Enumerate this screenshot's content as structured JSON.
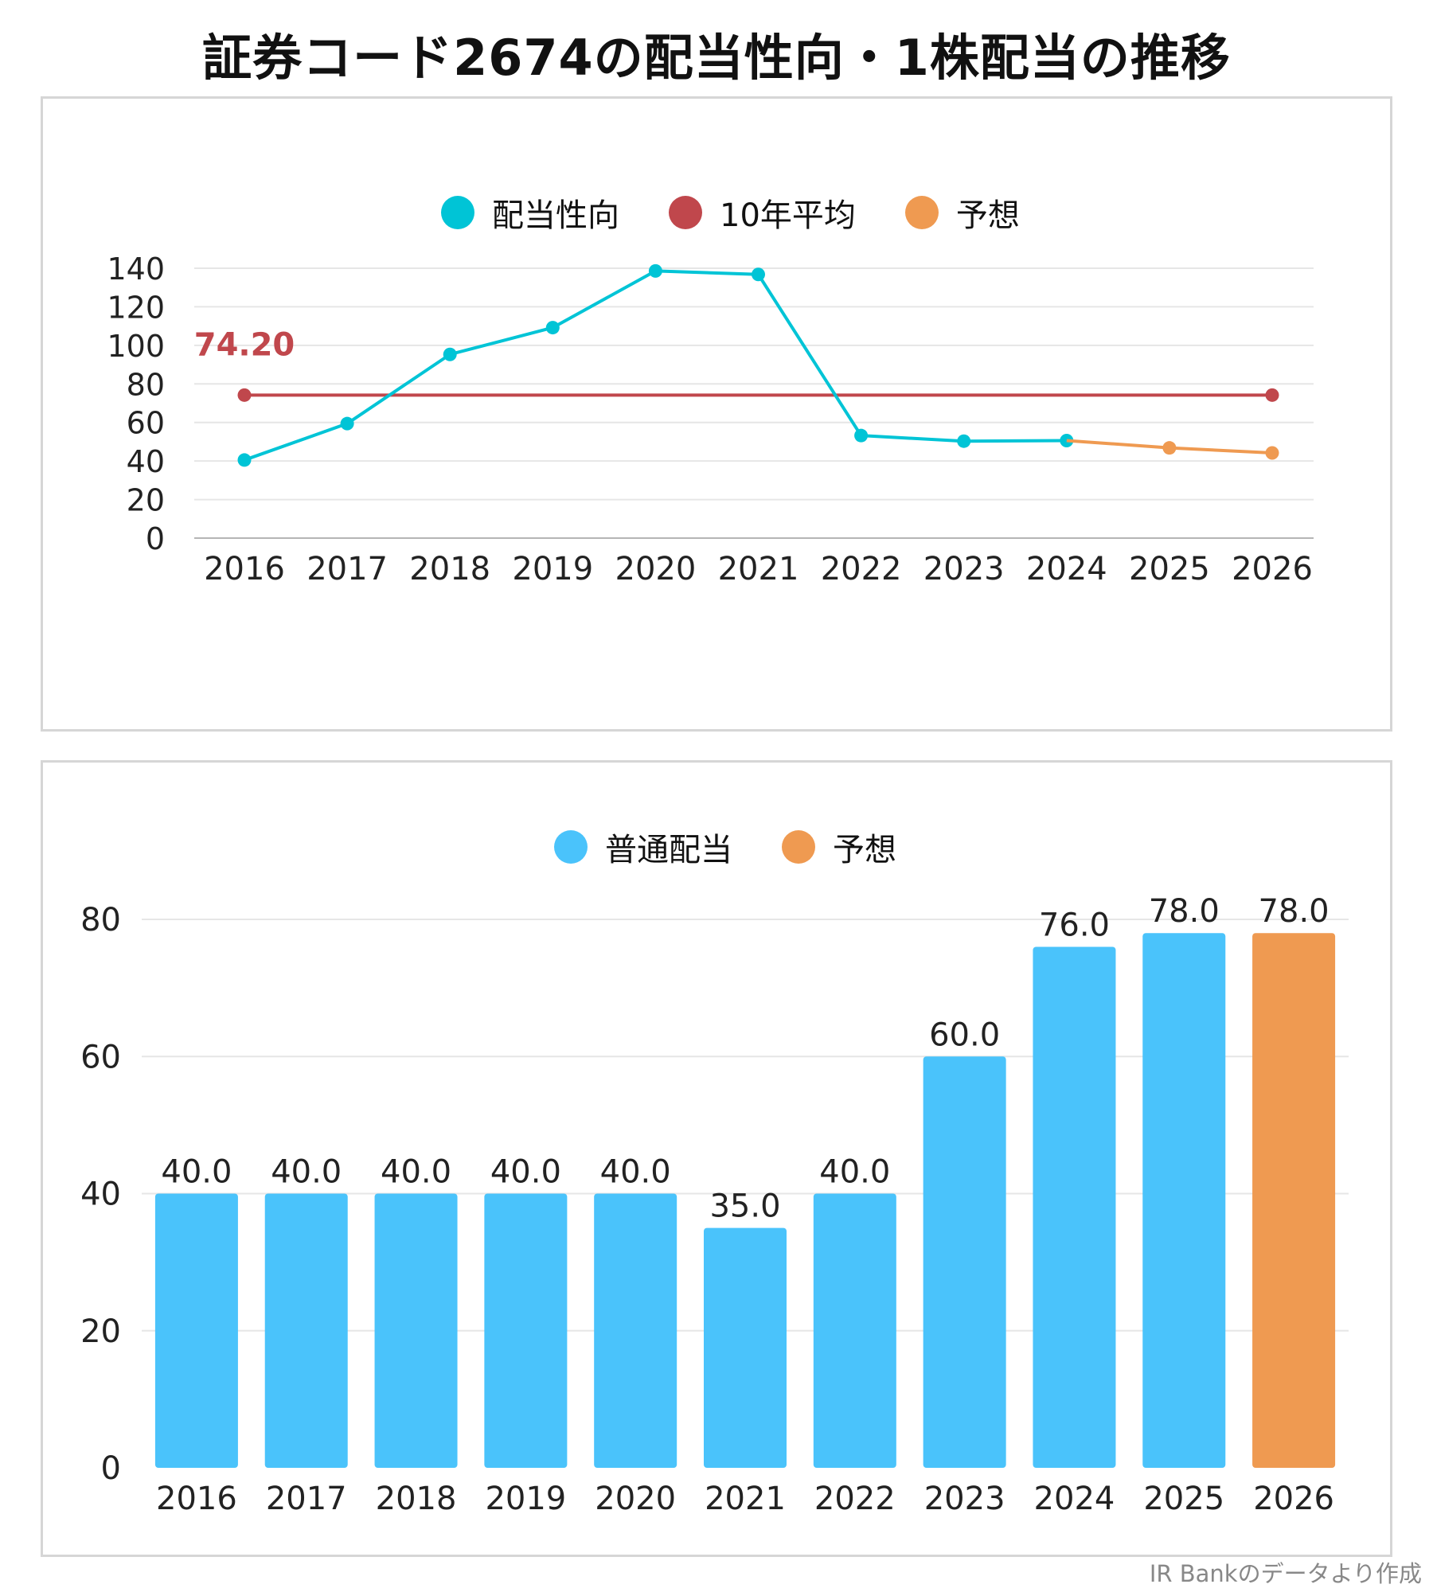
{
  "title": "証券コード2674の配当性向・1株配当の推移",
  "footer": "IR Bankのデータより作成",
  "colors": {
    "payout": "#00c4d6",
    "avg": "#c0474c",
    "forecast": "#ef9a51",
    "dividend": "#4ac3fb",
    "grid": "#e6e6e6",
    "axis": "#b5b5b5"
  },
  "chart_data": [
    {
      "type": "line",
      "title": "配当性向",
      "legend": [
        {
          "label": "配当性向",
          "color": "#00c4d6"
        },
        {
          "label": "10年平均",
          "color": "#c0474c"
        },
        {
          "label": "予想",
          "color": "#ef9a51"
        }
      ],
      "x": [
        "2016",
        "2017",
        "2018",
        "2019",
        "2020",
        "2021",
        "2022",
        "2023",
        "2024",
        "2025",
        "2026"
      ],
      "series": [
        {
          "name": "配当性向",
          "values": [
            40.5,
            59.4,
            95.3,
            109.2,
            138.6,
            136.8,
            53.2,
            50.3,
            50.6,
            null,
            null
          ]
        },
        {
          "name": "予想",
          "values": [
            null,
            null,
            null,
            null,
            null,
            null,
            null,
            null,
            50.6,
            46.8,
            44.2
          ]
        },
        {
          "name": "10年平均",
          "values": [
            74.2,
            74.2,
            74.2,
            74.2,
            74.2,
            74.2,
            74.2,
            74.2,
            74.2,
            74.2,
            74.2
          ]
        }
      ],
      "avg_label": "74.20",
      "ylim": [
        0,
        140
      ],
      "yticks": [
        0,
        20,
        40,
        60,
        80,
        100,
        120,
        140
      ]
    },
    {
      "type": "bar",
      "title": "1株配当",
      "legend": [
        {
          "label": "普通配当",
          "color": "#4ac3fb"
        },
        {
          "label": "予想",
          "color": "#ef9a51"
        }
      ],
      "categories": [
        "2016",
        "2017",
        "2018",
        "2019",
        "2020",
        "2021",
        "2022",
        "2023",
        "2024",
        "2025",
        "2026"
      ],
      "values": [
        40.0,
        40.0,
        40.0,
        40.0,
        40.0,
        35.0,
        40.0,
        60.0,
        76.0,
        78.0,
        78.0
      ],
      "labels": [
        "40.0",
        "40.0",
        "40.0",
        "40.0",
        "40.0",
        "35.0",
        "40.0",
        "60.0",
        "76.0",
        "78.0",
        "78.0"
      ],
      "forecast": [
        false,
        false,
        false,
        false,
        false,
        false,
        false,
        false,
        false,
        false,
        true
      ],
      "ylim": [
        0,
        80
      ],
      "yticks": [
        0,
        20,
        40,
        60,
        80
      ]
    }
  ]
}
